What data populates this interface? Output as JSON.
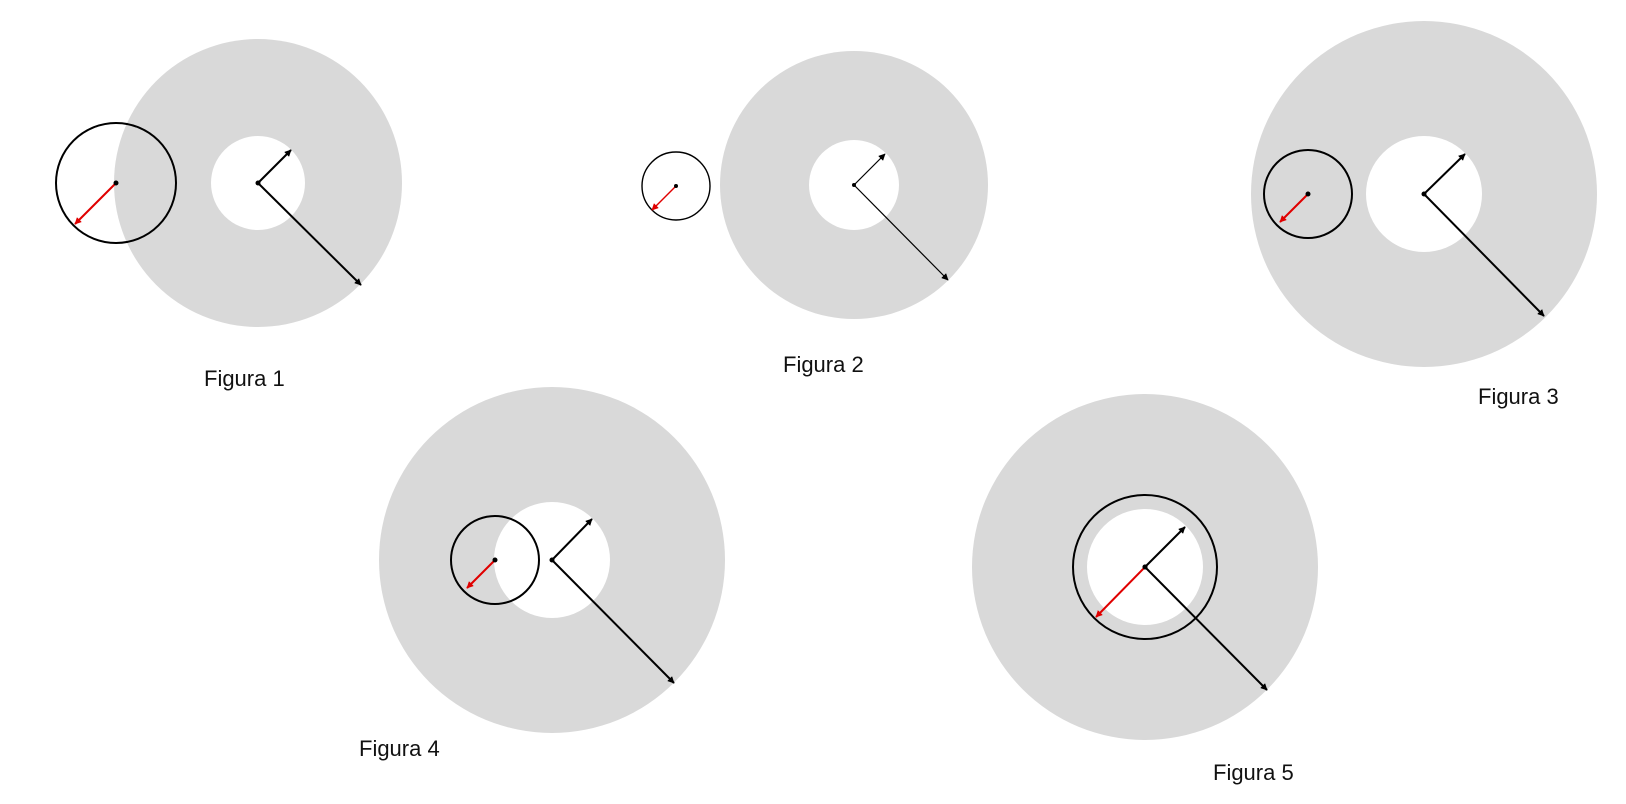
{
  "colors": {
    "annulus": "#d9d9d9",
    "hole": "#ffffff",
    "circle": "#000000",
    "arrow": "#000000",
    "small_arrow": "#e00000"
  },
  "figures": [
    {
      "id": "figura-1",
      "caption": "Figura 1"
    },
    {
      "id": "figura-2",
      "caption": "Figura 2"
    },
    {
      "id": "figura-3",
      "caption": "Figura 3"
    },
    {
      "id": "figura-4",
      "caption": "Figura 4"
    },
    {
      "id": "figura-5",
      "caption": "Figura 5"
    }
  ]
}
